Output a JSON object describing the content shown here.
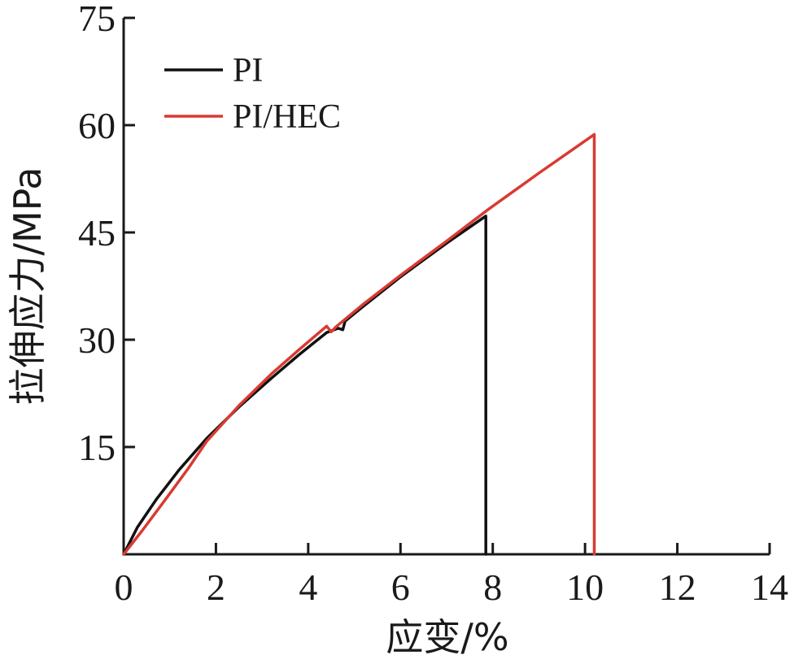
{
  "chart_data": {
    "type": "line",
    "xlabel": "应变/%",
    "ylabel": "拉伸应力/MPa",
    "xlim": [
      0,
      14
    ],
    "ylim": [
      0,
      75
    ],
    "xticks": [
      0,
      2,
      4,
      6,
      8,
      10,
      12,
      14
    ],
    "yticks": [
      15,
      30,
      45,
      60,
      75
    ],
    "x_tick_labels": [
      "0",
      "2",
      "4",
      "6",
      "8",
      "10",
      "12",
      "14"
    ],
    "y_tick_labels": [
      "15",
      "30",
      "45",
      "60",
      "75"
    ],
    "grid": false,
    "legend": "top-left",
    "series": [
      {
        "name": "PI",
        "color": "#111111",
        "points": [
          [
            0,
            0
          ],
          [
            0.3,
            3.8
          ],
          [
            0.7,
            7.6
          ],
          [
            1.2,
            11.8
          ],
          [
            1.8,
            16.2
          ],
          [
            2.5,
            20.6
          ],
          [
            3.2,
            24.6
          ],
          [
            3.8,
            27.9
          ],
          [
            4.4,
            31.0
          ],
          [
            4.65,
            31.6
          ],
          [
            4.75,
            31.4
          ],
          [
            4.8,
            32.6
          ],
          [
            5.2,
            34.7
          ],
          [
            6.0,
            38.8
          ],
          [
            7.0,
            43.5
          ],
          [
            7.85,
            47.3
          ],
          [
            7.85,
            0
          ]
        ]
      },
      {
        "name": "PI/HEC",
        "color": "#d93a32",
        "points": [
          [
            0,
            0
          ],
          [
            0.4,
            3.3
          ],
          [
            0.9,
            7.6
          ],
          [
            1.4,
            12.0
          ],
          [
            1.8,
            15.8
          ],
          [
            2.5,
            20.8
          ],
          [
            3.2,
            25.2
          ],
          [
            3.8,
            28.6
          ],
          [
            4.4,
            31.9
          ],
          [
            4.5,
            31.1
          ],
          [
            4.6,
            31.8
          ],
          [
            5.2,
            35.0
          ],
          [
            6.0,
            39.0
          ],
          [
            7.0,
            43.8
          ],
          [
            7.9,
            48.2
          ],
          [
            9.0,
            53.3
          ],
          [
            10.2,
            58.7
          ],
          [
            10.2,
            0
          ]
        ]
      }
    ]
  }
}
